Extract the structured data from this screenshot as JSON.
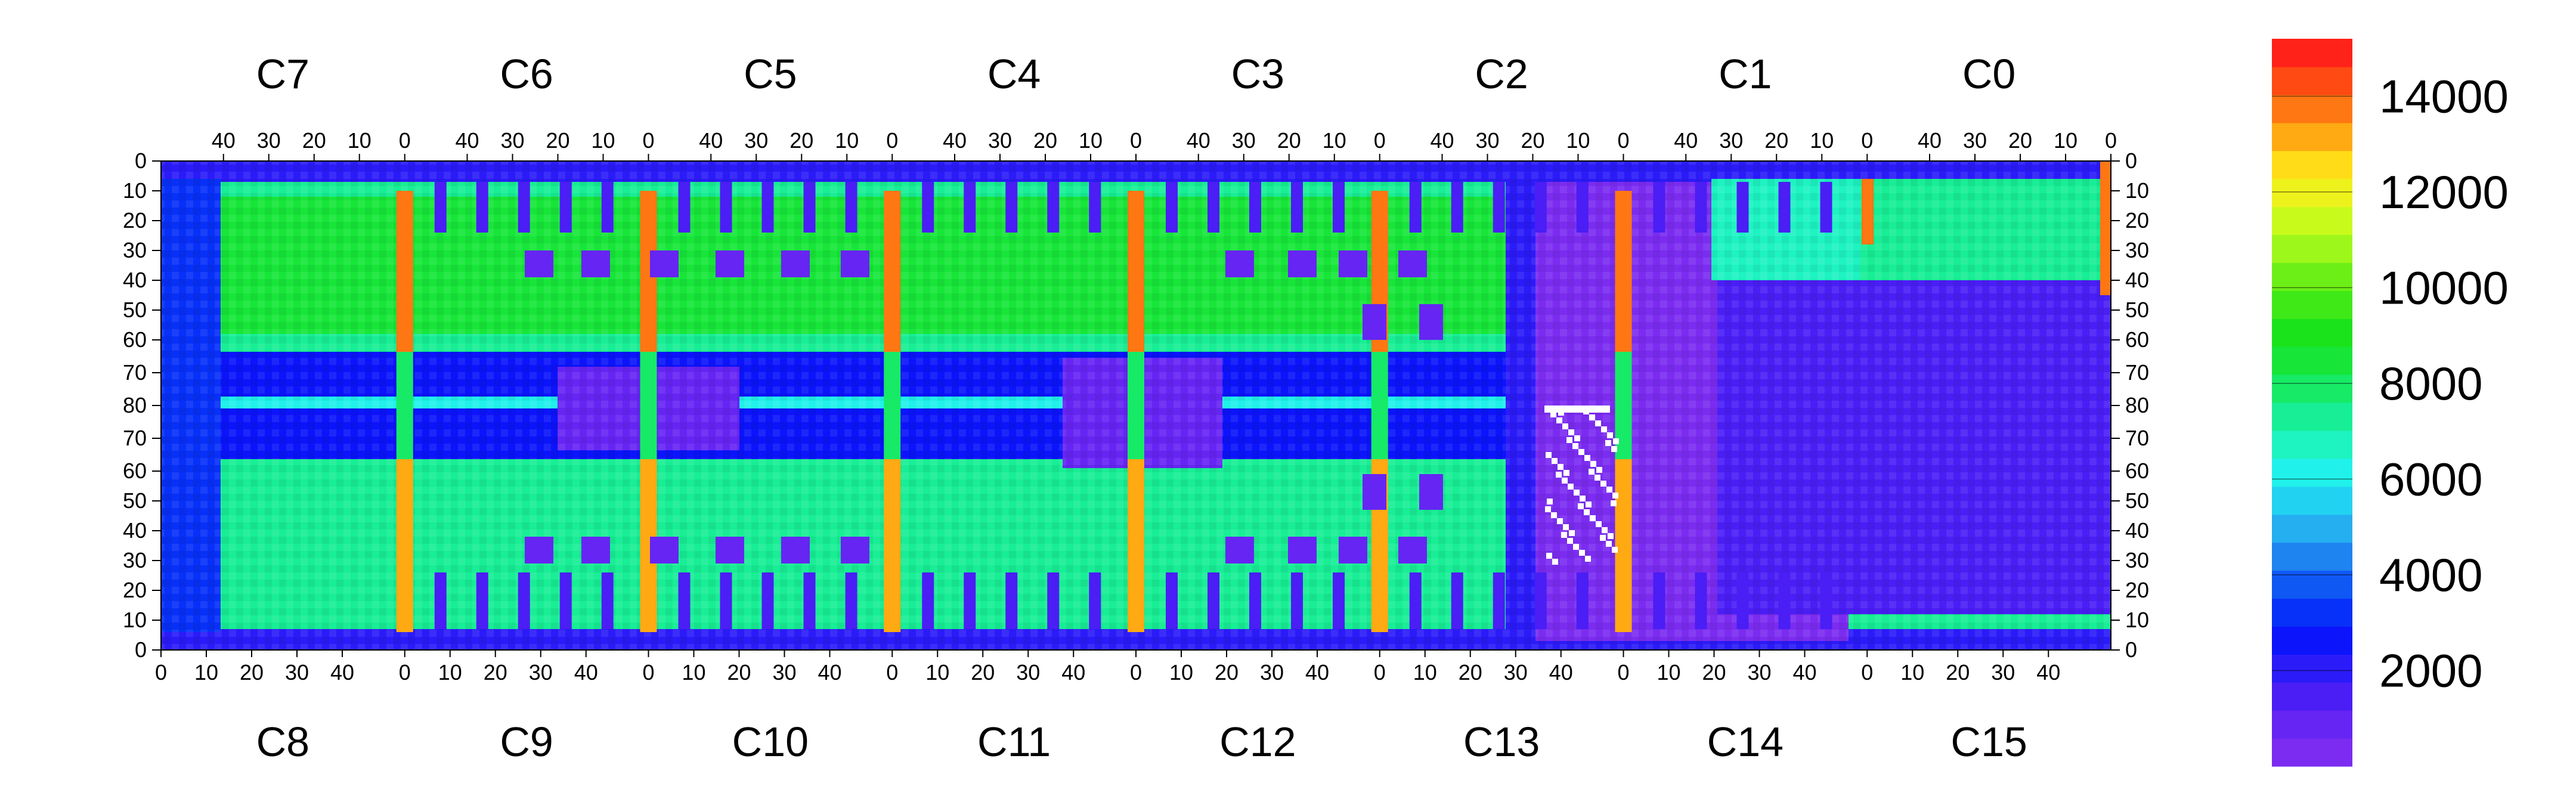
{
  "chart_data": {
    "type": "heatmap",
    "title": "",
    "xlabel": "",
    "ylabel": "",
    "top_chip_labels": [
      "C7",
      "C6",
      "C5",
      "C4",
      "C3",
      "C2",
      "C1",
      "C0"
    ],
    "bottom_chip_labels": [
      "C8",
      "C9",
      "C10",
      "C11",
      "C12",
      "C13",
      "C14",
      "C15"
    ],
    "top_x_ticks": [
      "40",
      "30",
      "20",
      "10",
      "0"
    ],
    "bottom_x_ticks": [
      "0",
      "10",
      "20",
      "30",
      "40"
    ],
    "y_ticks": [
      "0",
      "10",
      "20",
      "30",
      "40",
      "50",
      "60",
      "70",
      "80",
      "70",
      "60",
      "50",
      "40",
      "30",
      "20",
      "10",
      "0"
    ],
    "colorbar": {
      "min": 0,
      "max": 15200,
      "ticks": [
        2000,
        4000,
        6000,
        8000,
        10000,
        12000,
        14000
      ],
      "tick_labels": [
        "2000",
        "4000",
        "6000",
        "8000",
        "10000",
        "12000",
        "14000"
      ],
      "palette": [
        "#7b2cf0",
        "#6625f3",
        "#4a1ef5",
        "#2b1bf8",
        "#0b14fa",
        "#0730f8",
        "#0f58f4",
        "#1e84f0",
        "#25aef0",
        "#22d2f1",
        "#20f1ea",
        "#1ef3c2",
        "#18ee95",
        "#17ea66",
        "#17e639",
        "#1be31b",
        "#3fe917",
        "#6cef17",
        "#9ef71a",
        "#c8fb1c",
        "#eef21c",
        "#ffdc17",
        "#ffa913",
        "#ff7712",
        "#ff4a14",
        "#ff2218"
      ]
    },
    "grid": false,
    "regions": {
      "dead_area_chip": "C13",
      "low_region_chips": [
        "C13",
        "C14",
        "C15"
      ],
      "hot_columns": "chip boundary columns (red, ~13000–14500)",
      "center_row": "row 80 (green band)"
    }
  }
}
